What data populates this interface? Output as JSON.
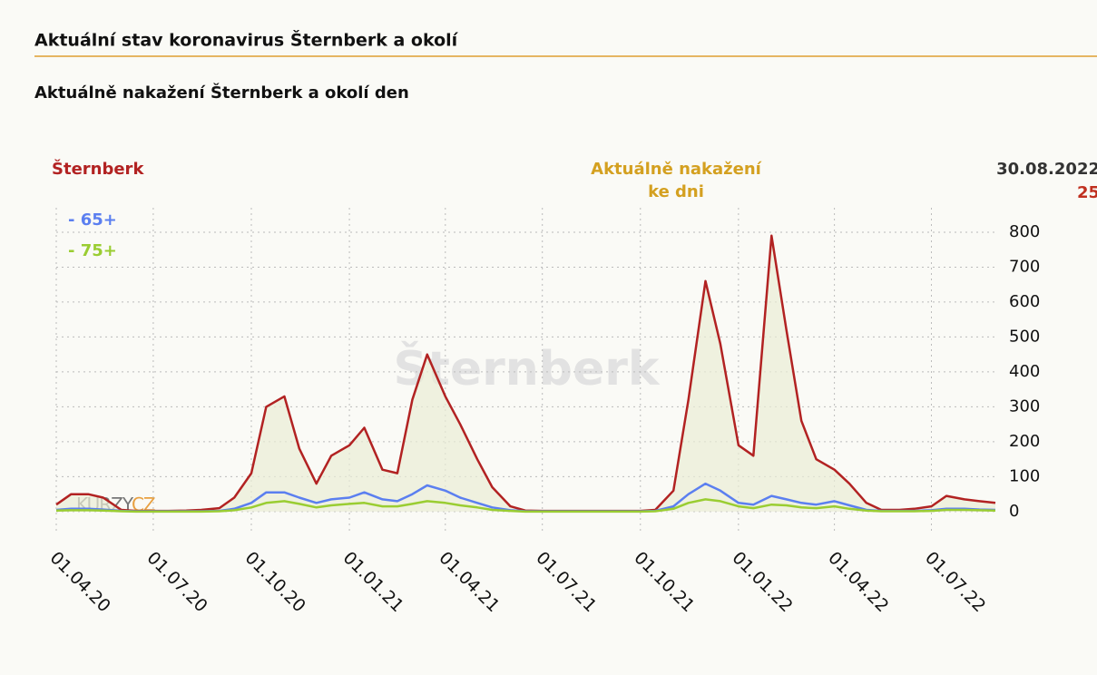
{
  "header": {
    "title": "Aktuální stav koronavirus Šternberk a okolí"
  },
  "chart_data": {
    "type": "line",
    "title": "Aktuálně nakažení Šternberk a okolí den",
    "center_label": [
      "Aktuálně nakažení",
      "ke dni"
    ],
    "latest": {
      "date": "30.08.2022",
      "value": 25
    },
    "watermark": "Šternberk",
    "logo": [
      "KURZY",
      "CZ"
    ],
    "x": [
      "01.04.20",
      "15.04.20",
      "01.05.20",
      "15.05.20",
      "01.06.20",
      "15.06.20",
      "01.07.20",
      "15.07.20",
      "01.08.20",
      "15.08.20",
      "01.09.20",
      "15.09.20",
      "01.10.20",
      "15.10.20",
      "01.11.20",
      "15.11.20",
      "01.12.20",
      "15.12.20",
      "01.01.21",
      "15.01.21",
      "01.02.21",
      "15.02.21",
      "01.03.21",
      "15.03.21",
      "01.04.21",
      "15.04.21",
      "01.05.21",
      "15.05.21",
      "01.06.21",
      "15.06.21",
      "01.07.21",
      "15.07.21",
      "01.08.21",
      "15.08.21",
      "01.09.21",
      "15.09.21",
      "01.10.21",
      "15.10.21",
      "01.11.21",
      "15.11.21",
      "01.12.21",
      "15.12.21",
      "01.01.22",
      "15.01.22",
      "01.02.22",
      "15.02.22",
      "01.03.22",
      "15.03.22",
      "01.04.22",
      "15.04.22",
      "01.05.22",
      "15.05.22",
      "01.06.22",
      "15.06.22",
      "01.07.22",
      "15.07.22",
      "01.08.22",
      "15.08.22",
      "30.08.22"
    ],
    "series": [
      {
        "name": "Šternberk",
        "color": "#b22222",
        "values": [
          20,
          50,
          50,
          40,
          5,
          2,
          2,
          2,
          3,
          5,
          10,
          40,
          110,
          300,
          330,
          180,
          80,
          160,
          190,
          240,
          120,
          110,
          320,
          450,
          330,
          250,
          150,
          70,
          15,
          3,
          2,
          2,
          2,
          2,
          2,
          2,
          2,
          5,
          60,
          320,
          660,
          480,
          190,
          160,
          790,
          520,
          260,
          150,
          120,
          80,
          25,
          5,
          5,
          8,
          15,
          45,
          35,
          30,
          25
        ]
      },
      {
        "name": "- 65+",
        "color": "#5b7ff0",
        "values": [
          5,
          8,
          8,
          6,
          2,
          1,
          1,
          1,
          1,
          1,
          2,
          8,
          25,
          55,
          55,
          40,
          25,
          35,
          40,
          55,
          35,
          30,
          50,
          75,
          60,
          40,
          25,
          12,
          4,
          1,
          1,
          1,
          1,
          1,
          1,
          1,
          1,
          2,
          15,
          50,
          80,
          60,
          25,
          20,
          45,
          35,
          25,
          20,
          30,
          18,
          5,
          2,
          2,
          2,
          4,
          8,
          8,
          6,
          5
        ]
      },
      {
        "name": "- 75+",
        "color": "#9acd32",
        "values": [
          3,
          4,
          4,
          3,
          1,
          0,
          0,
          0,
          0,
          0,
          1,
          4,
          12,
          25,
          30,
          22,
          12,
          18,
          22,
          25,
          15,
          15,
          22,
          30,
          25,
          18,
          12,
          5,
          2,
          0,
          0,
          0,
          0,
          0,
          0,
          0,
          0,
          1,
          8,
          25,
          35,
          30,
          15,
          10,
          20,
          18,
          12,
          10,
          15,
          8,
          3,
          1,
          1,
          1,
          2,
          5,
          5,
          4,
          3
        ]
      }
    ],
    "xlim": [
      "01.04.20",
      "30.08.22"
    ],
    "xticks": [
      "01.04.20",
      "01.07.20",
      "01.10.20",
      "01.01.21",
      "01.04.21",
      "01.07.21",
      "01.10.21",
      "01.01.22",
      "01.04.22",
      "01.07.22"
    ],
    "ylim": [
      -60,
      870
    ],
    "yticks": [
      0,
      100,
      200,
      300,
      400,
      500,
      600,
      700,
      800
    ],
    "grid": true
  }
}
